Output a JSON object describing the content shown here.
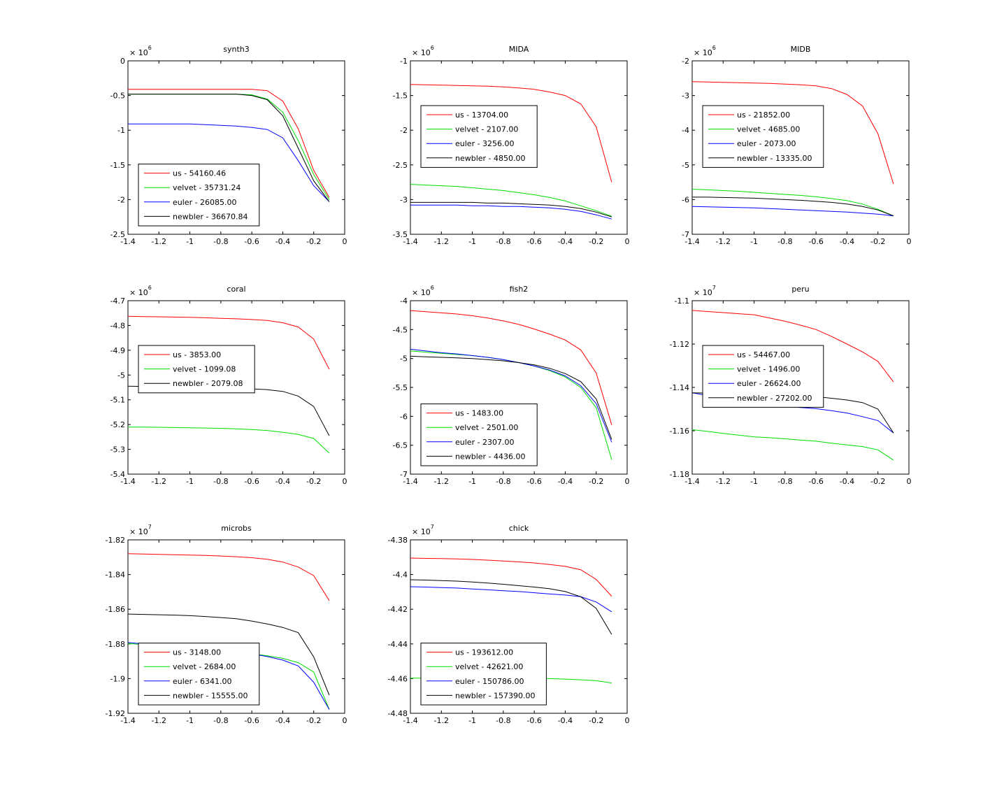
{
  "figure": {
    "background": "#ffffff",
    "axis_color": "#000000"
  },
  "chart_data": [
    {
      "type": "line",
      "title": "synth3",
      "exponent": "6",
      "xlim": [
        -1.4,
        0
      ],
      "ylim": [
        -2.5,
        0
      ],
      "xticks": [
        "-1.4",
        "-1.2",
        "-1",
        "-0.8",
        "-0.6",
        "-0.4",
        "-0.2",
        "0"
      ],
      "yticks": [
        "0",
        "-0.5",
        "-1",
        "-1.5",
        "-2",
        "-2.5"
      ],
      "x": [
        -1.4,
        -1.3,
        -1.2,
        -1.1,
        -1.0,
        -0.9,
        -0.8,
        -0.7,
        -0.6,
        -0.5,
        -0.4,
        -0.3,
        -0.2,
        -0.1
      ],
      "series": [
        {
          "name": "us - 54160.46",
          "color": "#ff0000",
          "values": [
            -0.41,
            -0.41,
            -0.41,
            -0.41,
            -0.41,
            -0.41,
            -0.41,
            -0.41,
            -0.41,
            -0.43,
            -0.58,
            -0.98,
            -1.58,
            -1.97
          ]
        },
        {
          "name": "velvet - 35731.24",
          "color": "#00dd00",
          "values": [
            -0.48,
            -0.48,
            -0.48,
            -0.48,
            -0.48,
            -0.48,
            -0.48,
            -0.48,
            -0.49,
            -0.55,
            -0.74,
            -1.15,
            -1.64,
            -2.0
          ]
        },
        {
          "name": "euler - 26085.00",
          "color": "#0000ff",
          "values": [
            -0.91,
            -0.91,
            -0.91,
            -0.91,
            -0.91,
            -0.92,
            -0.93,
            -0.94,
            -0.96,
            -0.99,
            -1.11,
            -1.44,
            -1.8,
            -2.03
          ]
        },
        {
          "name": "newbler - 36670.84",
          "color": "#000000",
          "values": [
            -0.48,
            -0.48,
            -0.48,
            -0.48,
            -0.48,
            -0.48,
            -0.48,
            -0.48,
            -0.5,
            -0.56,
            -0.79,
            -1.26,
            -1.73,
            -2.03
          ]
        }
      ],
      "legend": {
        "location": "lower-left"
      }
    },
    {
      "type": "line",
      "title": "MIDA",
      "exponent": "6",
      "xlim": [
        -1.4,
        0
      ],
      "ylim": [
        -3.5,
        -1
      ],
      "xticks": [
        "-1.4",
        "-1.2",
        "-1",
        "-0.8",
        "-0.6",
        "-0.4",
        "-0.2",
        "0"
      ],
      "yticks": [
        "-1",
        "-1.5",
        "-2",
        "-2.5",
        "-3",
        "-3.5"
      ],
      "x": [
        -1.4,
        -1.3,
        -1.2,
        -1.1,
        -1.0,
        -0.9,
        -0.8,
        -0.7,
        -0.6,
        -0.5,
        -0.4,
        -0.3,
        -0.2,
        -0.1
      ],
      "series": [
        {
          "name": "us - 13704.00",
          "color": "#ff0000",
          "values": [
            -1.34,
            -1.345,
            -1.35,
            -1.355,
            -1.36,
            -1.365,
            -1.375,
            -1.39,
            -1.41,
            -1.45,
            -1.5,
            -1.62,
            -1.95,
            -2.75
          ]
        },
        {
          "name": "velvet - 2107.00",
          "color": "#00dd00",
          "values": [
            -2.78,
            -2.79,
            -2.8,
            -2.81,
            -2.83,
            -2.85,
            -2.87,
            -2.9,
            -2.93,
            -2.97,
            -3.02,
            -3.09,
            -3.16,
            -3.24
          ]
        },
        {
          "name": "euler - 3256.00",
          "color": "#0000ff",
          "values": [
            -3.08,
            -3.08,
            -3.08,
            -3.08,
            -3.09,
            -3.09,
            -3.1,
            -3.1,
            -3.11,
            -3.12,
            -3.14,
            -3.17,
            -3.22,
            -3.28
          ]
        },
        {
          "name": "newbler - 4850.00",
          "color": "#000000",
          "values": [
            -3.04,
            -3.04,
            -3.04,
            -3.04,
            -3.04,
            -3.05,
            -3.05,
            -3.06,
            -3.07,
            -3.08,
            -3.1,
            -3.13,
            -3.18,
            -3.25
          ]
        }
      ],
      "legend": {
        "location": "upper-left"
      }
    },
    {
      "type": "line",
      "title": "MIDB",
      "exponent": "6",
      "xlim": [
        -1.4,
        0
      ],
      "ylim": [
        -7,
        -2
      ],
      "xticks": [
        "-1.4",
        "-1.2",
        "-1",
        "-0.8",
        "-0.6",
        "-0.4",
        "-0.2",
        "0"
      ],
      "yticks": [
        "-2",
        "-3",
        "-4",
        "-5",
        "-6",
        "-7"
      ],
      "x": [
        -1.4,
        -1.3,
        -1.2,
        -1.1,
        -1.0,
        -0.9,
        -0.8,
        -0.7,
        -0.6,
        -0.5,
        -0.4,
        -0.3,
        -0.2,
        -0.1
      ],
      "series": [
        {
          "name": "us - 21852.00",
          "color": "#ff0000",
          "values": [
            -2.6,
            -2.61,
            -2.62,
            -2.63,
            -2.64,
            -2.65,
            -2.67,
            -2.69,
            -2.72,
            -2.8,
            -2.97,
            -3.3,
            -4.1,
            -5.55
          ]
        },
        {
          "name": "velvet - 4685.00",
          "color": "#00dd00",
          "values": [
            -5.7,
            -5.72,
            -5.74,
            -5.76,
            -5.79,
            -5.82,
            -5.85,
            -5.88,
            -5.92,
            -5.97,
            -6.03,
            -6.13,
            -6.28,
            -6.47
          ]
        },
        {
          "name": "euler - 2073.00",
          "color": "#0000ff",
          "values": [
            -6.2,
            -6.21,
            -6.22,
            -6.23,
            -6.24,
            -6.26,
            -6.28,
            -6.3,
            -6.32,
            -6.34,
            -6.36,
            -6.39,
            -6.42,
            -6.47
          ]
        },
        {
          "name": "newbler - 13335.00",
          "color": "#000000",
          "values": [
            -5.93,
            -5.93,
            -5.94,
            -5.95,
            -5.96,
            -5.98,
            -6.0,
            -6.02,
            -6.05,
            -6.08,
            -6.13,
            -6.2,
            -6.3,
            -6.47
          ]
        }
      ],
      "legend": {
        "location": "upper-left"
      }
    },
    {
      "type": "line",
      "title": "coral",
      "exponent": "6",
      "xlim": [
        -1.4,
        0
      ],
      "ylim": [
        -5.4,
        -4.7
      ],
      "xticks": [
        "-1.4",
        "-1.2",
        "-1",
        "-0.8",
        "-0.6",
        "-0.4",
        "-0.2",
        "0"
      ],
      "yticks": [
        "-4.7",
        "-4.8",
        "-4.9",
        "-5",
        "-5.1",
        "-5.2",
        "-5.3",
        "-5.4"
      ],
      "x": [
        -1.4,
        -1.3,
        -1.2,
        -1.1,
        -1.0,
        -0.9,
        -0.8,
        -0.7,
        -0.6,
        -0.5,
        -0.4,
        -0.3,
        -0.2,
        -0.1
      ],
      "series": [
        {
          "name": "us - 3853.00",
          "color": "#ff0000",
          "values": [
            -4.763,
            -4.764,
            -4.765,
            -4.766,
            -4.767,
            -4.769,
            -4.771,
            -4.773,
            -4.776,
            -4.78,
            -4.789,
            -4.806,
            -4.855,
            -4.977
          ]
        },
        {
          "name": "velvet - 1099.08",
          "color": "#00dd00",
          "values": [
            -5.21,
            -5.21,
            -5.211,
            -5.212,
            -5.213,
            -5.214,
            -5.215,
            -5.217,
            -5.22,
            -5.224,
            -5.231,
            -5.24,
            -5.256,
            -5.315
          ]
        },
        {
          "name": "newbler - 2079.08",
          "color": "#000000",
          "values": [
            -5.045,
            -5.046,
            -5.047,
            -5.048,
            -5.049,
            -5.05,
            -5.051,
            -5.053,
            -5.056,
            -5.059,
            -5.066,
            -5.085,
            -5.127,
            -5.245
          ]
        }
      ],
      "legend": {
        "location": "upper-left"
      }
    },
    {
      "type": "line",
      "title": "fish2",
      "exponent": "6",
      "xlim": [
        -1.4,
        0
      ],
      "ylim": [
        -7,
        -4
      ],
      "xticks": [
        "-1.4",
        "-1.2",
        "-1",
        "-0.8",
        "-0.6",
        "-0.4",
        "-0.2",
        "0"
      ],
      "yticks": [
        "-4",
        "-4.5",
        "-5",
        "-5.5",
        "-6",
        "-6.5",
        "-7"
      ],
      "x": [
        -1.4,
        -1.3,
        -1.2,
        -1.1,
        -1.0,
        -0.9,
        -0.8,
        -0.7,
        -0.6,
        -0.5,
        -0.4,
        -0.3,
        -0.2,
        -0.1
      ],
      "series": [
        {
          "name": "us - 1483.00",
          "color": "#ff0000",
          "values": [
            -4.17,
            -4.19,
            -4.21,
            -4.23,
            -4.26,
            -4.3,
            -4.35,
            -4.41,
            -4.49,
            -4.58,
            -4.68,
            -4.85,
            -5.25,
            -6.15
          ]
        },
        {
          "name": "velvet - 2501.00",
          "color": "#00dd00",
          "values": [
            -4.87,
            -4.89,
            -4.91,
            -4.93,
            -4.95,
            -4.98,
            -5.02,
            -5.07,
            -5.13,
            -5.21,
            -5.32,
            -5.5,
            -5.85,
            -6.75
          ]
        },
        {
          "name": "euler - 2307.00",
          "color": "#0000ff",
          "values": [
            -4.84,
            -4.87,
            -4.9,
            -4.92,
            -4.95,
            -4.98,
            -5.02,
            -5.07,
            -5.13,
            -5.2,
            -5.3,
            -5.47,
            -5.78,
            -6.45
          ]
        },
        {
          "name": "newbler - 4436.00",
          "color": "#000000",
          "values": [
            -4.96,
            -4.97,
            -4.98,
            -4.99,
            -5.0,
            -5.02,
            -5.04,
            -5.07,
            -5.11,
            -5.17,
            -5.26,
            -5.4,
            -5.7,
            -6.4
          ]
        }
      ],
      "legend": {
        "location": "lower-left"
      }
    },
    {
      "type": "line",
      "title": "peru",
      "exponent": "7",
      "xlim": [
        -1.4,
        0
      ],
      "ylim": [
        -1.18,
        -1.1
      ],
      "xticks": [
        "-1.4",
        "-1.2",
        "-1",
        "-0.8",
        "-0.6",
        "-0.4",
        "-0.2",
        "0"
      ],
      "yticks": [
        "-1.1",
        "-1.12",
        "-1.14",
        "-1.16",
        "-1.18"
      ],
      "x": [
        -1.4,
        -1.3,
        -1.2,
        -1.1,
        -1.0,
        -0.9,
        -0.8,
        -0.7,
        -0.6,
        -0.5,
        -0.4,
        -0.3,
        -0.2,
        -0.1
      ],
      "series": [
        {
          "name": "us - 54467.00",
          "color": "#ff0000",
          "values": [
            -1.1045,
            -1.105,
            -1.1055,
            -1.106,
            -1.1065,
            -1.108,
            -1.1095,
            -1.1113,
            -1.1133,
            -1.1165,
            -1.12,
            -1.1236,
            -1.128,
            -1.1375
          ]
        },
        {
          "name": "velvet - 1496.00",
          "color": "#00dd00",
          "values": [
            -1.1595,
            -1.1603,
            -1.1612,
            -1.162,
            -1.1628,
            -1.1632,
            -1.1637,
            -1.1643,
            -1.1648,
            -1.1657,
            -1.1665,
            -1.1673,
            -1.1688,
            -1.1735
          ]
        },
        {
          "name": "euler - 26624.00",
          "color": "#0000ff",
          "values": [
            -1.1425,
            -1.1437,
            -1.1449,
            -1.1462,
            -1.1472,
            -1.1478,
            -1.1485,
            -1.1493,
            -1.1498,
            -1.1507,
            -1.1518,
            -1.1535,
            -1.1553,
            -1.161
          ]
        },
        {
          "name": "newbler - 27202.00",
          "color": "#000000",
          "values": [
            -1.1425,
            -1.1426,
            -1.1428,
            -1.1429,
            -1.1431,
            -1.1433,
            -1.1436,
            -1.1439,
            -1.1443,
            -1.145,
            -1.1458,
            -1.147,
            -1.15,
            -1.161
          ]
        }
      ],
      "legend": {
        "location": "upper-left"
      }
    },
    {
      "type": "line",
      "title": "microbs",
      "exponent": "7",
      "xlim": [
        -1.4,
        0
      ],
      "ylim": [
        -1.92,
        -1.82
      ],
      "xticks": [
        "-1.4",
        "-1.2",
        "-1",
        "-0.8",
        "-0.6",
        "-0.4",
        "-0.2",
        "0"
      ],
      "yticks": [
        "-1.82",
        "-1.84",
        "-1.86",
        "-1.88",
        "-1.9",
        "-1.92"
      ],
      "x": [
        -1.4,
        -1.3,
        -1.2,
        -1.1,
        -1.0,
        -0.9,
        -0.8,
        -0.7,
        -0.6,
        -0.5,
        -0.4,
        -0.3,
        -0.2,
        -0.1
      ],
      "series": [
        {
          "name": "us - 3148.00",
          "color": "#ff0000",
          "values": [
            -1.828,
            -1.8282,
            -1.8284,
            -1.8286,
            -1.8288,
            -1.829,
            -1.8293,
            -1.8297,
            -1.8303,
            -1.8312,
            -1.8328,
            -1.8357,
            -1.8406,
            -1.855
          ]
        },
        {
          "name": "velvet - 2684.00",
          "color": "#00dd00",
          "values": [
            -1.8797,
            -1.8805,
            -1.8812,
            -1.882,
            -1.8828,
            -1.8835,
            -1.8842,
            -1.885,
            -1.8857,
            -1.8868,
            -1.8883,
            -1.8908,
            -1.8962,
            -1.9178
          ]
        },
        {
          "name": "euler - 6341.00",
          "color": "#0000ff",
          "values": [
            -1.8792,
            -1.88,
            -1.8808,
            -1.8816,
            -1.8824,
            -1.8832,
            -1.884,
            -1.8848,
            -1.8857,
            -1.8873,
            -1.8893,
            -1.8927,
            -1.9021,
            -1.9178
          ]
        },
        {
          "name": "newbler - 15555.00",
          "color": "#000000",
          "values": [
            -1.8628,
            -1.863,
            -1.8632,
            -1.8634,
            -1.8637,
            -1.8642,
            -1.8648,
            -1.8655,
            -1.8668,
            -1.8685,
            -1.8705,
            -1.8735,
            -1.8875,
            -1.9095
          ]
        }
      ],
      "legend": {
        "location": "lower-left"
      }
    },
    {
      "type": "line",
      "title": "chick",
      "exponent": "7",
      "xlim": [
        -1.4,
        0
      ],
      "ylim": [
        -4.48,
        -4.38
      ],
      "xticks": [
        "-1.4",
        "-1.2",
        "-1",
        "-0.8",
        "-0.6",
        "-0.4",
        "-0.2",
        "0"
      ],
      "yticks": [
        "-4.38",
        "-4.4",
        "-4.42",
        "-4.44",
        "-4.46",
        "-4.48"
      ],
      "x": [
        -1.4,
        -1.3,
        -1.2,
        -1.1,
        -1.0,
        -0.9,
        -0.8,
        -0.7,
        -0.6,
        -0.5,
        -0.4,
        -0.3,
        -0.2,
        -0.1
      ],
      "series": [
        {
          "name": "us - 193612.00",
          "color": "#ff0000",
          "values": [
            -4.3905,
            -4.3907,
            -4.3908,
            -4.391,
            -4.3913,
            -4.3917,
            -4.3922,
            -4.3927,
            -4.3933,
            -4.3942,
            -4.3953,
            -4.3972,
            -4.4028,
            -4.4125
          ]
        },
        {
          "name": "velvet - 42621.00",
          "color": "#00dd00",
          "values": [
            -4.4597,
            -4.4597,
            -4.4597,
            -4.4597,
            -4.4597,
            -4.4597,
            -4.4598,
            -4.4598,
            -4.4599,
            -4.46,
            -4.4603,
            -4.4607,
            -4.4612,
            -4.4625
          ]
        },
        {
          "name": "euler - 150786.00",
          "color": "#0000ff",
          "values": [
            -4.407,
            -4.4072,
            -4.4075,
            -4.4078,
            -4.4083,
            -4.4088,
            -4.4093,
            -4.4098,
            -4.4105,
            -4.4112,
            -4.4118,
            -4.4128,
            -4.4158,
            -4.4215
          ]
        },
        {
          "name": "newbler - 157390.00",
          "color": "#000000",
          "values": [
            -4.403,
            -4.4032,
            -4.4035,
            -4.4038,
            -4.4043,
            -4.4049,
            -4.4056,
            -4.4064,
            -4.4072,
            -4.4082,
            -4.4098,
            -4.4128,
            -4.4195,
            -4.4345
          ]
        }
      ],
      "legend": {
        "location": "lower-left"
      }
    }
  ]
}
